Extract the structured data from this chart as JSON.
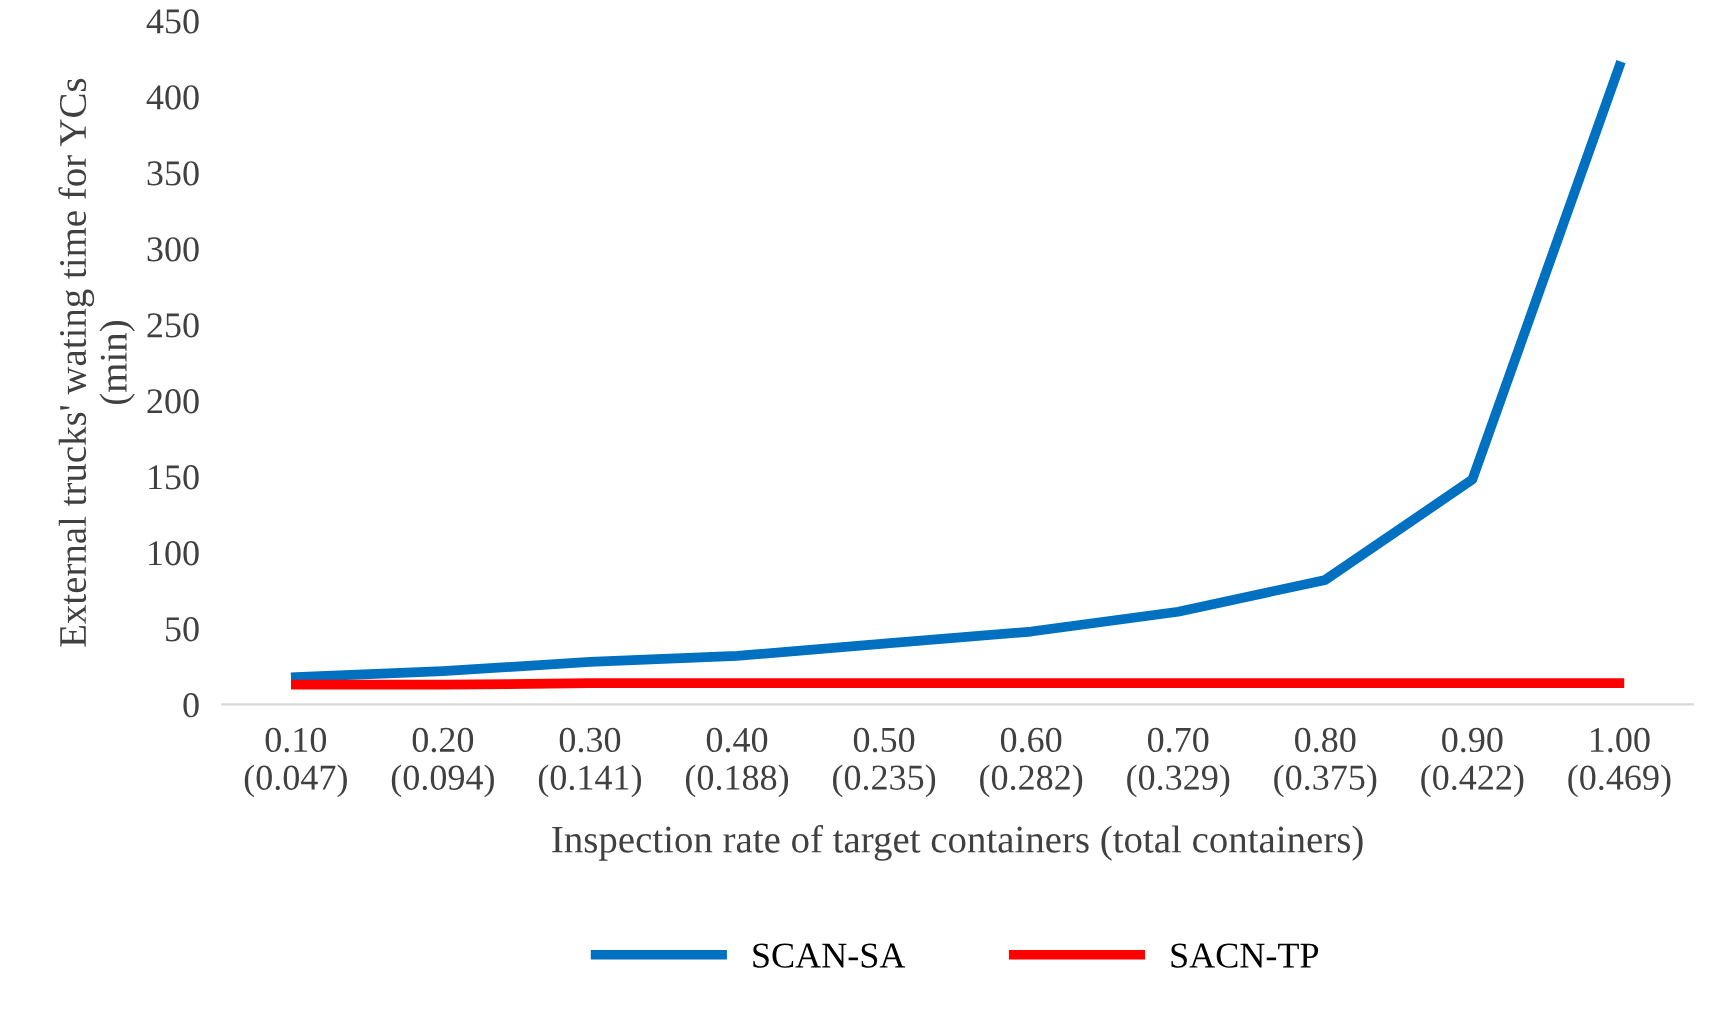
{
  "chart_data": {
    "type": "line",
    "xlabel": "Inspection rate of target containers (total containers)",
    "ylabel": "External trucks' wating time for YCs\n(min)",
    "categories": [
      "0.10\n(0.047)",
      "0.20\n(0.094)",
      "0.30\n(0.141)",
      "0.40\n(0.188)",
      "0.50\n(0.235)",
      "0.60\n(0.282)",
      "0.70\n(0.329)",
      "0.80\n(0.375)",
      "0.90\n(0.422)",
      "1.00\n(0.469)"
    ],
    "series": [
      {
        "name": "SCAN-SA",
        "color": "#0070c0",
        "values": [
          18,
          22,
          28,
          32,
          40,
          48,
          61,
          82,
          148,
          420
        ]
      },
      {
        "name": "SACN-TP",
        "color": "#ff0000",
        "values": [
          13,
          13,
          14,
          14,
          14,
          14,
          14,
          14,
          14,
          14
        ]
      }
    ],
    "ylim": [
      0,
      450
    ],
    "yticks": [
      0,
      50,
      100,
      150,
      200,
      250,
      300,
      350,
      400,
      450
    ],
    "grid": false,
    "legend": "bottom",
    "marker": "none",
    "line_style": "solid"
  }
}
